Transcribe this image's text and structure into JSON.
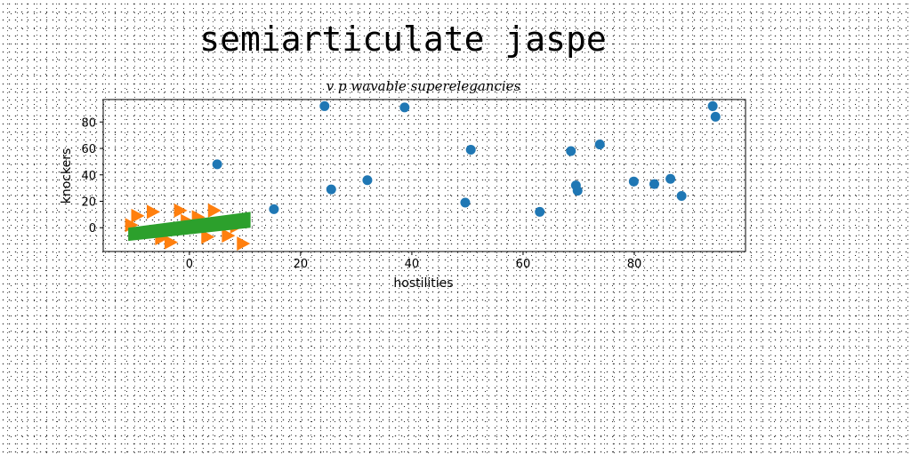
{
  "figure": {
    "title": "semiarticulate jaspe"
  },
  "chart_data": {
    "type": "scatter",
    "title": "v p wavable superelegancies",
    "xlabel": "hostilities",
    "ylabel": "knockers",
    "xlim": [
      -15.5,
      100
    ],
    "ylim": [
      -18,
      97
    ],
    "xticks": [
      0,
      20,
      40,
      60,
      80
    ],
    "yticks": [
      0,
      20,
      40,
      60,
      80
    ],
    "grid": false,
    "series": [
      {
        "marker": "circle",
        "color": "#1f77b4",
        "x": [
          24.3,
          38.7,
          5.0,
          15.2,
          25.5,
          32.0,
          49.6,
          50.6,
          63.0,
          68.6,
          69.5,
          69.8,
          73.8,
          79.9,
          83.6,
          86.5,
          88.5,
          94.1,
          94.6
        ],
        "y": [
          92,
          91,
          48,
          14,
          29,
          36,
          19,
          59,
          12,
          58,
          32,
          28,
          63,
          35,
          33,
          37,
          24,
          92,
          84
        ]
      },
      {
        "marker": "triangle-right",
        "color": "#ff7f0e",
        "x": [
          -10.6,
          -9.5,
          -6.7,
          -5.2,
          -3.5,
          -1.8,
          -0.6,
          1.4,
          3.1,
          4.3,
          4.8,
          6.8,
          8.3,
          9.5
        ],
        "y": [
          2,
          9,
          12,
          -8,
          -11,
          13,
          5,
          8,
          -7,
          13,
          3,
          -6,
          1,
          -12
        ]
      },
      {
        "marker": "band",
        "color": "#2ca02c",
        "x": [
          -11,
          11
        ],
        "y_low": [
          -10,
          0
        ],
        "y_high": [
          0,
          12
        ]
      }
    ]
  }
}
